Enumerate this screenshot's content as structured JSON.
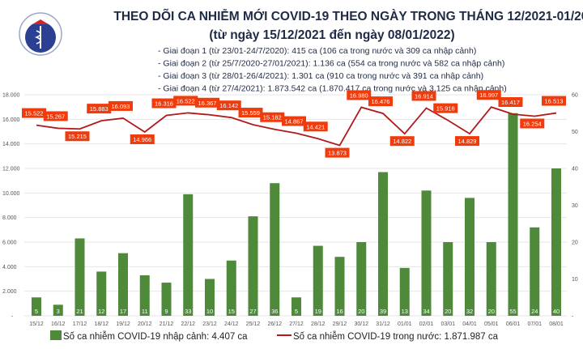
{
  "logo_text": "BỘ Y TẾ · MINISTRY OF HEALTH",
  "chart_data": {
    "type": "bar+line",
    "title": "THEO DÕI CA NHIỄM MỚI COVID-19 THEO NGÀY TRONG THÁNG 12/2021-01/2022",
    "subtitle": "(từ ngày 15/12/2021 đến ngày 08/01/2022)",
    "notes": [
      "- Giai đoạn 1 (từ 23/01-24/7/2020): 415 ca (106 ca trong nước và 309 ca nhập cảnh)",
      "- Giai đoạn 2 (từ 25/7/2020-27/01/2021): 1.136 ca (554 ca trong nước và 582 ca nhập cảnh)",
      "- Giai đoạn 3 (từ 28/01-26/4/2021): 1.301 ca (910 ca trong nước và 391 ca nhập cảnh)",
      "- Giai đoạn 4 (từ 27/4/2021): 1.873.542 ca (1.870.417 ca trong nước và 3.125 ca nhập cảnh)"
    ],
    "categories": [
      "15/12",
      "16/12",
      "17/12",
      "18/12",
      "19/12",
      "20/12",
      "21/12",
      "22/12",
      "23/12",
      "24/12",
      "25/12",
      "26/12",
      "27/12",
      "28/12",
      "29/12",
      "30/12",
      "31/12",
      "01/01",
      "02/01",
      "03/01",
      "04/01",
      "05/01",
      "06/01",
      "07/01",
      "08/01"
    ],
    "series": [
      {
        "name": "Số ca nhiễm COVID-19 nhập cảnh: 4.407 ca",
        "type": "bar",
        "axis": "right",
        "color": "#4e8a3a",
        "values": [
          5,
          3,
          21,
          12,
          17,
          11,
          9,
          33,
          10,
          15,
          27,
          36,
          5,
          19,
          16,
          20,
          39,
          13,
          34,
          20,
          32,
          20,
          55,
          24,
          40
        ]
      },
      {
        "name": "Số ca nhiễm COVID-19 trong nước: 1.871.987 ca",
        "type": "line",
        "axis": "left",
        "color": "#b01a1a",
        "label_color": "#f03c0c",
        "values": [
          15522,
          15267,
          15215,
          15883,
          16093,
          14966,
          16316,
          16522,
          16367,
          16142,
          15559,
          15182,
          14867,
          14421,
          13873,
          16980,
          16476,
          14822,
          16914,
          15916,
          14829,
          16997,
          16417,
          16254,
          16513
        ]
      }
    ],
    "y_left": {
      "range": [
        0,
        18000
      ],
      "ticks": [
        "-",
        "2.000",
        "4.000",
        "6.000",
        "8.000",
        "10.000",
        "12.000",
        "14.000",
        "16.000",
        "18.000"
      ]
    },
    "y_right": {
      "range": [
        0,
        60
      ],
      "ticks": [
        "-",
        "10",
        "20",
        "30",
        "40",
        "50",
        "60"
      ]
    },
    "grid": true,
    "legend_position": "bottom"
  }
}
